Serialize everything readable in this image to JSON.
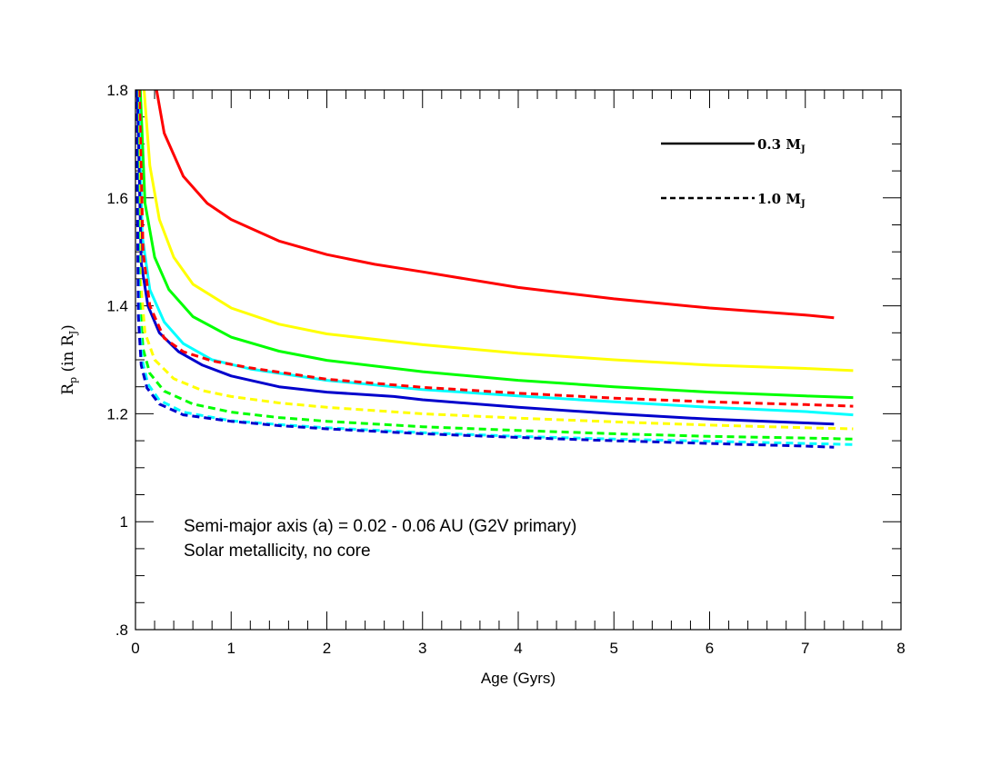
{
  "chart_data": {
    "type": "line",
    "xlabel": "Age (Gyrs)",
    "ylabel": {
      "main": "R",
      "sub": "p",
      "mid": " (in R",
      "sub2": "J",
      "end": ")"
    },
    "xlim": [
      0,
      8
    ],
    "ylim": [
      0.8,
      1.8
    ],
    "x_ticks": [
      0,
      1,
      2,
      3,
      4,
      5,
      6,
      7,
      8
    ],
    "x_tick_labels": [
      "0",
      "1",
      "2",
      "3",
      "4",
      "5",
      "6",
      "7",
      "8"
    ],
    "y_ticks": [
      0.8,
      1.0,
      1.2,
      1.4,
      1.6,
      1.8
    ],
    "y_tick_labels": [
      ".8",
      "1",
      "1.2",
      "1.4",
      "1.6",
      "1.8"
    ],
    "grid": false,
    "legend_position": "top-right",
    "annotations": [
      "Semi-major axis (a) = 0.02 - 0.06 AU (G2V primary)",
      "Solar metallicity, no core"
    ],
    "legend": [
      {
        "label": "0.3",
        "unit": "M",
        "unit_sub": "J",
        "style": "solid"
      },
      {
        "label": "1.0",
        "unit": "M",
        "unit_sub": "J",
        "style": "dashed"
      }
    ],
    "series": [
      {
        "color": "#ff0000",
        "style": "solid",
        "points": [
          [
            0.22,
            1.8
          ],
          [
            0.3,
            1.72
          ],
          [
            0.5,
            1.64
          ],
          [
            0.75,
            1.59
          ],
          [
            1,
            1.56
          ],
          [
            1.5,
            1.52
          ],
          [
            2,
            1.495
          ],
          [
            2.5,
            1.477
          ],
          [
            3,
            1.463
          ],
          [
            4,
            1.434
          ],
          [
            5,
            1.413
          ],
          [
            6,
            1.396
          ],
          [
            7,
            1.383
          ],
          [
            7.3,
            1.378
          ]
        ]
      },
      {
        "color": "#ffff00",
        "style": "solid",
        "points": [
          [
            0.09,
            1.8
          ],
          [
            0.15,
            1.66
          ],
          [
            0.25,
            1.56
          ],
          [
            0.4,
            1.49
          ],
          [
            0.6,
            1.44
          ],
          [
            1,
            1.396
          ],
          [
            1.5,
            1.366
          ],
          [
            2,
            1.348
          ],
          [
            3,
            1.328
          ],
          [
            4,
            1.312
          ],
          [
            5,
            1.3
          ],
          [
            6,
            1.29
          ],
          [
            7,
            1.284
          ],
          [
            7.5,
            1.28
          ]
        ]
      },
      {
        "color": "#00ff00",
        "style": "solid",
        "points": [
          [
            0.05,
            1.8
          ],
          [
            0.1,
            1.59
          ],
          [
            0.2,
            1.49
          ],
          [
            0.35,
            1.43
          ],
          [
            0.6,
            1.38
          ],
          [
            1,
            1.342
          ],
          [
            1.5,
            1.316
          ],
          [
            2,
            1.299
          ],
          [
            3,
            1.278
          ],
          [
            4,
            1.262
          ],
          [
            5,
            1.25
          ],
          [
            6,
            1.24
          ],
          [
            7,
            1.233
          ],
          [
            7.5,
            1.23
          ]
        ]
      },
      {
        "color": "#00ffff",
        "style": "solid",
        "points": [
          [
            0.03,
            1.8
          ],
          [
            0.07,
            1.53
          ],
          [
            0.15,
            1.43
          ],
          [
            0.3,
            1.37
          ],
          [
            0.5,
            1.33
          ],
          [
            0.8,
            1.3
          ],
          [
            1.2,
            1.283
          ],
          [
            2,
            1.262
          ],
          [
            3,
            1.245
          ],
          [
            4,
            1.233
          ],
          [
            5,
            1.222
          ],
          [
            6,
            1.212
          ],
          [
            7,
            1.204
          ],
          [
            7.5,
            1.198
          ]
        ]
      },
      {
        "color": "#0000cc",
        "style": "solid",
        "points": [
          [
            0.02,
            1.8
          ],
          [
            0.06,
            1.48
          ],
          [
            0.13,
            1.4
          ],
          [
            0.25,
            1.35
          ],
          [
            0.45,
            1.315
          ],
          [
            0.7,
            1.29
          ],
          [
            1,
            1.27
          ],
          [
            1.5,
            1.25
          ],
          [
            2,
            1.24
          ],
          [
            2.7,
            1.232
          ],
          [
            3,
            1.226
          ],
          [
            4,
            1.212
          ],
          [
            5,
            1.2
          ],
          [
            6,
            1.19
          ],
          [
            7,
            1.183
          ],
          [
            7.3,
            1.181
          ]
        ]
      },
      {
        "color": "#ff0000",
        "style": "dashed",
        "points": [
          [
            0.04,
            1.8
          ],
          [
            0.08,
            1.5
          ],
          [
            0.15,
            1.4
          ],
          [
            0.3,
            1.34
          ],
          [
            0.5,
            1.315
          ],
          [
            0.8,
            1.298
          ],
          [
            1.2,
            1.285
          ],
          [
            2,
            1.264
          ],
          [
            3,
            1.249
          ],
          [
            4,
            1.238
          ],
          [
            5,
            1.229
          ],
          [
            6,
            1.222
          ],
          [
            7,
            1.217
          ],
          [
            7.5,
            1.214
          ]
        ]
      },
      {
        "color": "#ffff00",
        "style": "dashed",
        "points": [
          [
            0.02,
            1.8
          ],
          [
            0.05,
            1.45
          ],
          [
            0.1,
            1.35
          ],
          [
            0.2,
            1.3
          ],
          [
            0.4,
            1.265
          ],
          [
            0.7,
            1.243
          ],
          [
            1,
            1.232
          ],
          [
            1.5,
            1.22
          ],
          [
            2,
            1.212
          ],
          [
            3,
            1.2
          ],
          [
            4,
            1.192
          ],
          [
            5,
            1.185
          ],
          [
            6,
            1.179
          ],
          [
            7,
            1.174
          ],
          [
            7.5,
            1.172
          ]
        ]
      },
      {
        "color": "#00ff00",
        "style": "dashed",
        "points": [
          [
            0.015,
            1.8
          ],
          [
            0.04,
            1.42
          ],
          [
            0.08,
            1.32
          ],
          [
            0.15,
            1.275
          ],
          [
            0.3,
            1.242
          ],
          [
            0.6,
            1.218
          ],
          [
            1,
            1.203
          ],
          [
            1.5,
            1.193
          ],
          [
            2,
            1.186
          ],
          [
            3,
            1.176
          ],
          [
            4,
            1.169
          ],
          [
            5,
            1.163
          ],
          [
            6,
            1.158
          ],
          [
            7,
            1.155
          ],
          [
            7.5,
            1.153
          ]
        ]
      },
      {
        "color": "#00ffff",
        "style": "dashed",
        "points": [
          [
            0.012,
            1.8
          ],
          [
            0.035,
            1.39
          ],
          [
            0.07,
            1.3
          ],
          [
            0.13,
            1.255
          ],
          [
            0.25,
            1.225
          ],
          [
            0.5,
            1.203
          ],
          [
            1,
            1.187
          ],
          [
            1.5,
            1.18
          ],
          [
            2,
            1.174
          ],
          [
            3,
            1.165
          ],
          [
            4,
            1.158
          ],
          [
            5,
            1.153
          ],
          [
            6,
            1.149
          ],
          [
            7,
            1.145
          ],
          [
            7.5,
            1.143
          ]
        ]
      },
      {
        "color": "#0000cc",
        "style": "dashed",
        "points": [
          [
            0.01,
            1.8
          ],
          [
            0.03,
            1.38
          ],
          [
            0.06,
            1.29
          ],
          [
            0.12,
            1.248
          ],
          [
            0.25,
            1.218
          ],
          [
            0.5,
            1.198
          ],
          [
            1,
            1.186
          ],
          [
            1.5,
            1.178
          ],
          [
            2,
            1.172
          ],
          [
            3,
            1.163
          ],
          [
            4,
            1.156
          ],
          [
            5,
            1.15
          ],
          [
            6,
            1.145
          ],
          [
            7,
            1.14
          ],
          [
            7.3,
            1.138
          ]
        ]
      }
    ]
  }
}
